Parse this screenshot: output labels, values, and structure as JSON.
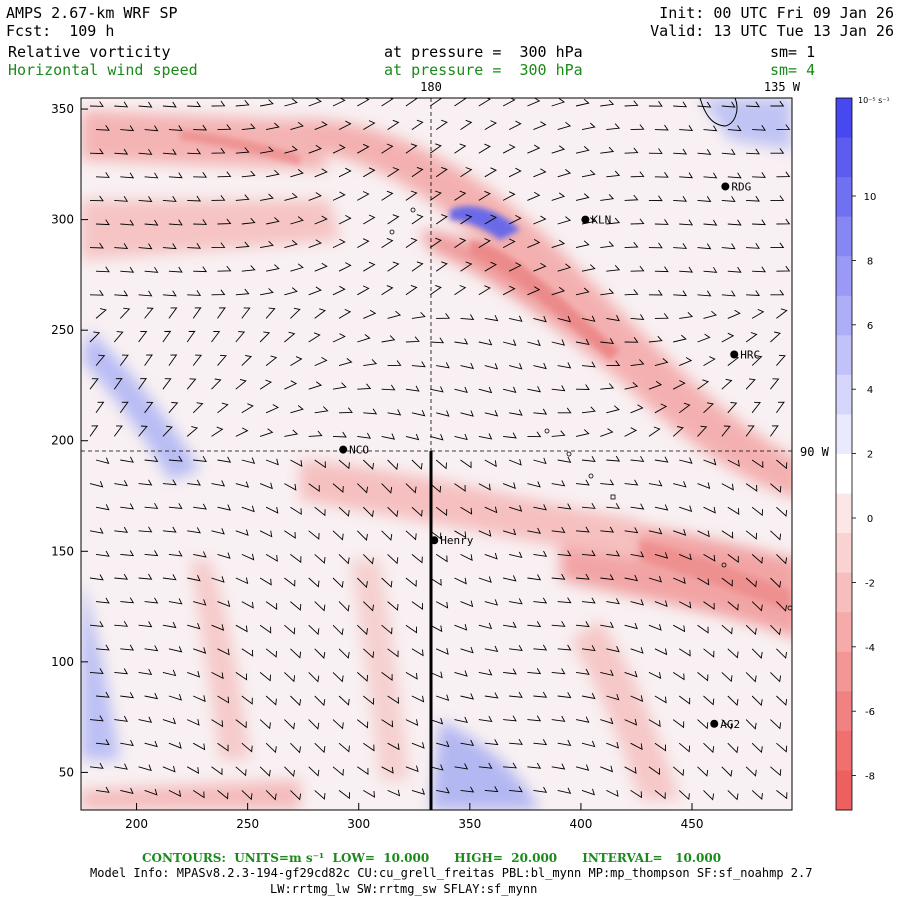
{
  "header": {
    "model_title": "AMPS 2.67-km WRF SP",
    "forecast": "Fcst:  109 h",
    "init": "Init: 00 UTC Fri 09 Jan 26",
    "valid": "Valid: 13 UTC Tue 13 Jan 26",
    "field1": {
      "name": "Relative vorticity",
      "level": "at pressure =  300 hPa",
      "smooth": "sm= 1"
    },
    "field2": {
      "name": "Horizontal wind speed",
      "level": "at pressure =  300 hPa",
      "smooth": "sm= 4"
    }
  },
  "map": {
    "x_ticks": [
      "200",
      "250",
      "300",
      "350",
      "400",
      "450"
    ],
    "y_ticks": [
      "350",
      "300",
      "250",
      "200",
      "150",
      "100",
      "50"
    ],
    "meridian_label_top": "180",
    "meridian_label_right": "135 W",
    "parallel_label": "90 W",
    "stations": [
      {
        "label": "RDG",
        "x": 465,
        "y": 315
      },
      {
        "label": "KLN",
        "x": 402,
        "y": 300
      },
      {
        "label": "HRC",
        "x": 469,
        "y": 239
      },
      {
        "label": "NCO",
        "x": 293,
        "y": 196
      },
      {
        "label": "Henry",
        "x": 334,
        "y": 155
      },
      {
        "label": "AG2",
        "x": 460,
        "y": 72
      }
    ],
    "colors": {
      "positive": "#f07070",
      "negative": "#5050f0",
      "barb": "#000000"
    }
  },
  "colorbar": {
    "unit": "10⁻⁵ s⁻¹",
    "labels": [
      "10",
      "8",
      "6",
      "4",
      "2",
      "0",
      "-2",
      "-4",
      "-6",
      "-8"
    ]
  },
  "footer": {
    "contours": "CONTOURS:  UNITS=m s⁻¹  LOW=  10.000      HIGH=  20.000      INTERVAL=   10.000",
    "model_info": "Model Info: MPASv8.2.3-194-gf29cd82c CU:cu_grell_freitas PBL:bl_mynn MP:mp_thompson SF:sf_noahmp 2.7",
    "model_info2": "LW:rrtmg_lw SW:rrtmg_sw SFLAY:sf_mynn"
  }
}
